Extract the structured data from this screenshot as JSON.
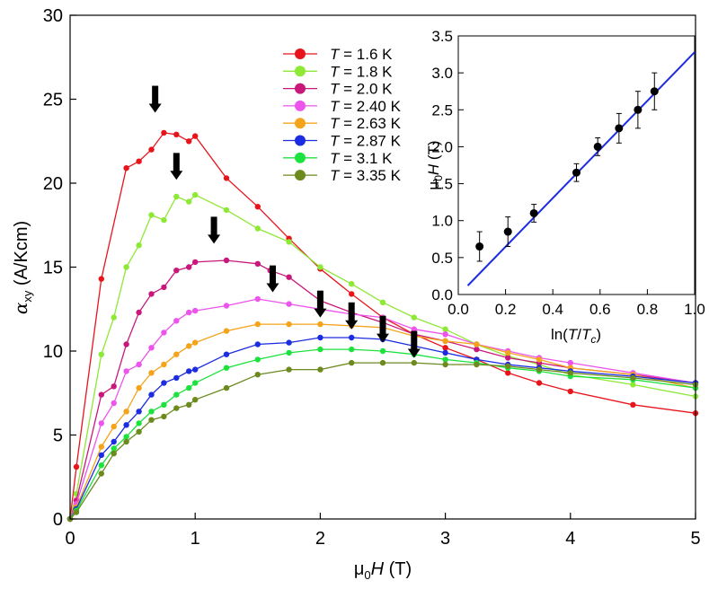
{
  "chart_data": [
    {
      "type": "line",
      "id": "main",
      "xlabel": "μ0H  (T)",
      "ylabel": "αxy (A/Kcm)",
      "xlim": [
        0,
        5
      ],
      "ylim": [
        0,
        30
      ],
      "xticks": [
        0,
        1,
        2,
        3,
        4,
        5
      ],
      "yticks": [
        0,
        5,
        10,
        15,
        20,
        25,
        30
      ],
      "legend_position": "top-center",
      "series": [
        {
          "name": "T = 1.6 K",
          "T": "1.6",
          "color": "#e8141c",
          "x": [
            0,
            0.05,
            0.25,
            0.45,
            0.55,
            0.65,
            0.75,
            0.85,
            0.95,
            1.0,
            1.25,
            1.5,
            1.75,
            2.0,
            2.25,
            2.5,
            2.75,
            3.0,
            3.25,
            3.5,
            3.75,
            4.0,
            4.5,
            5.0
          ],
          "y": [
            0,
            3.1,
            14.3,
            20.9,
            21.3,
            22.0,
            23.0,
            22.9,
            22.5,
            22.8,
            20.3,
            18.6,
            16.7,
            14.9,
            13.4,
            12.0,
            11.0,
            10.2,
            9.5,
            8.7,
            8.1,
            7.6,
            6.8,
            6.3
          ]
        },
        {
          "name": "T = 1.8 K",
          "T": "1.8",
          "color": "#8ee836",
          "x": [
            0,
            0.05,
            0.25,
            0.35,
            0.45,
            0.55,
            0.65,
            0.75,
            0.85,
            0.95,
            1.0,
            1.25,
            1.5,
            1.75,
            2.0,
            2.25,
            2.5,
            2.75,
            3.0,
            3.25,
            3.5,
            3.75,
            4.0,
            4.5,
            5.0
          ],
          "y": [
            0,
            1.5,
            9.8,
            12.0,
            15.0,
            16.3,
            18.1,
            17.8,
            19.2,
            18.9,
            19.3,
            18.4,
            17.3,
            16.5,
            15.0,
            14.0,
            12.9,
            12.0,
            11.3,
            10.4,
            9.7,
            9.2,
            8.6,
            8.0,
            7.3
          ]
        },
        {
          "name": "T = 2.0 K",
          "T": "2.0",
          "color": "#c8187c",
          "x": [
            0,
            0.05,
            0.25,
            0.35,
            0.45,
            0.55,
            0.65,
            0.75,
            0.85,
            0.95,
            1.0,
            1.25,
            1.5,
            1.6,
            1.75,
            2.0,
            2.25,
            2.5,
            2.75,
            3.0,
            3.25,
            3.5,
            3.75,
            4.0,
            4.5,
            5.0
          ],
          "y": [
            0,
            1.1,
            7.4,
            7.9,
            10.4,
            12.3,
            13.4,
            13.8,
            14.8,
            15.0,
            15.3,
            15.4,
            15.2,
            14.8,
            14.4,
            13.0,
            12.3,
            11.7,
            11.0,
            10.6,
            10.1,
            9.6,
            9.3,
            9.0,
            8.6,
            8.1
          ]
        },
        {
          "name": "T = 2.40 K",
          "T": "2.40",
          "color": "#ec54ec",
          "x": [
            0,
            0.05,
            0.25,
            0.35,
            0.45,
            0.55,
            0.65,
            0.75,
            0.85,
            0.95,
            1.0,
            1.25,
            1.5,
            1.75,
            2.0,
            2.25,
            2.5,
            2.75,
            3.0,
            3.25,
            3.5,
            3.75,
            4.0,
            4.5,
            5.0
          ],
          "y": [
            0,
            0.9,
            5.7,
            6.9,
            8.8,
            9.2,
            10.2,
            11.1,
            11.8,
            12.3,
            12.4,
            12.7,
            13.1,
            12.8,
            12.5,
            12.2,
            12.0,
            11.3,
            11.0,
            10.4,
            10.0,
            9.6,
            9.3,
            8.7,
            8.1
          ]
        },
        {
          "name": "T = 2.63 K",
          "T": "2.63",
          "color": "#f4a41a",
          "x": [
            0,
            0.05,
            0.25,
            0.35,
            0.45,
            0.55,
            0.65,
            0.75,
            0.85,
            0.95,
            1.0,
            1.25,
            1.5,
            1.75,
            2.0,
            2.25,
            2.5,
            2.75,
            3.0,
            3.25,
            3.5,
            3.75,
            4.0,
            4.5,
            5.0
          ],
          "y": [
            0,
            0.7,
            4.3,
            5.5,
            6.4,
            7.8,
            8.7,
            9.2,
            9.8,
            10.3,
            10.5,
            11.2,
            11.6,
            11.6,
            11.6,
            11.5,
            11.4,
            10.9,
            10.6,
            10.4,
            9.9,
            9.5,
            9.0,
            8.6,
            7.8
          ]
        },
        {
          "name": "T = 2.87 K",
          "T": "2.87",
          "color": "#1c2ce0",
          "x": [
            0,
            0.05,
            0.25,
            0.35,
            0.45,
            0.55,
            0.65,
            0.75,
            0.85,
            0.95,
            1.0,
            1.25,
            1.5,
            1.75,
            2.0,
            2.25,
            2.5,
            2.75,
            3.0,
            3.25,
            3.5,
            3.75,
            4.0,
            4.5,
            5.0
          ],
          "y": [
            0,
            0.6,
            3.8,
            4.6,
            5.6,
            6.4,
            7.4,
            8.1,
            8.4,
            8.8,
            8.9,
            9.8,
            10.4,
            10.5,
            10.8,
            10.8,
            10.7,
            10.3,
            9.9,
            9.5,
            9.2,
            9.0,
            8.8,
            8.5,
            8.1
          ]
        },
        {
          "name": "T = 3.1 K",
          "T": "3.1",
          "color": "#1ce23e",
          "x": [
            0,
            0.05,
            0.25,
            0.35,
            0.45,
            0.55,
            0.65,
            0.75,
            0.85,
            0.95,
            1.0,
            1.25,
            1.5,
            1.75,
            2.0,
            2.25,
            2.5,
            2.75,
            3.0,
            3.25,
            3.5,
            3.75,
            4.0,
            4.5,
            5.0
          ],
          "y": [
            0,
            0.5,
            3.2,
            4.2,
            4.9,
            5.7,
            6.4,
            6.8,
            7.4,
            7.8,
            8.1,
            9.0,
            9.5,
            9.9,
            10.1,
            10.1,
            10.0,
            9.8,
            9.5,
            9.3,
            9.0,
            8.8,
            8.5,
            8.3,
            7.8
          ]
        },
        {
          "name": "T = 3.35 K",
          "T": "3.35",
          "color": "#6c8a1e",
          "x": [
            0,
            0.05,
            0.25,
            0.35,
            0.45,
            0.55,
            0.65,
            0.75,
            0.85,
            0.95,
            1.0,
            1.25,
            1.5,
            1.75,
            2.0,
            2.25,
            2.5,
            2.75,
            3.0,
            3.25,
            3.5,
            3.75,
            4.0,
            4.5,
            5.0
          ],
          "y": [
            0,
            0.4,
            2.7,
            3.9,
            4.6,
            5.2,
            5.9,
            6.1,
            6.6,
            6.8,
            7.1,
            7.8,
            8.6,
            8.9,
            8.9,
            9.3,
            9.3,
            9.3,
            9.2,
            9.2,
            9.1,
            8.9,
            8.7,
            8.4,
            8.0
          ]
        }
      ],
      "annotations": [
        {
          "type": "arrow",
          "x": 0.68,
          "y_top": 25.8,
          "y_bottom": 24.2
        },
        {
          "type": "arrow",
          "x": 0.85,
          "y_top": 21.8,
          "y_bottom": 20.2
        },
        {
          "type": "arrow",
          "x": 1.15,
          "y_top": 18.0,
          "y_bottom": 16.4
        },
        {
          "type": "arrow",
          "x": 1.62,
          "y_top": 15.1,
          "y_bottom": 13.5
        },
        {
          "type": "arrow",
          "x": 2.0,
          "y_top": 13.6,
          "y_bottom": 12.0
        },
        {
          "type": "arrow",
          "x": 2.25,
          "y_top": 12.9,
          "y_bottom": 11.3
        },
        {
          "type": "arrow",
          "x": 2.5,
          "y_top": 12.1,
          "y_bottom": 10.5
        },
        {
          "type": "arrow",
          "x": 2.75,
          "y_top": 11.2,
          "y_bottom": 9.6
        }
      ]
    },
    {
      "type": "scatter",
      "id": "inset",
      "xlabel": "ln(T/Tc)",
      "ylabel": "μ0H (T)",
      "xlim": [
        0,
        1.0
      ],
      "ylim": [
        0,
        3.5
      ],
      "xticks": [
        "0.0",
        "0.2",
        "0.4",
        "0.6",
        "0.8",
        "1.0"
      ],
      "yticks": [
        "0.0",
        "0.5",
        "1.0",
        "1.5",
        "2.0",
        "2.5",
        "3.0",
        "3.5"
      ],
      "points": [
        {
          "x": 0.09,
          "y": 0.65,
          "err": 0.2
        },
        {
          "x": 0.21,
          "y": 0.85,
          "err": 0.2
        },
        {
          "x": 0.32,
          "y": 1.1,
          "err": 0.12
        },
        {
          "x": 0.5,
          "y": 1.65,
          "err": 0.12
        },
        {
          "x": 0.59,
          "y": 2.0,
          "err": 0.12
        },
        {
          "x": 0.68,
          "y": 2.25,
          "err": 0.2
        },
        {
          "x": 0.76,
          "y": 2.5,
          "err": 0.25
        },
        {
          "x": 0.83,
          "y": 2.75,
          "err": 0.25
        }
      ],
      "fit_line": {
        "color": "#1c2ce0",
        "x": [
          0.04,
          1.0
        ],
        "y": [
          0.12,
          3.28
        ]
      }
    }
  ]
}
